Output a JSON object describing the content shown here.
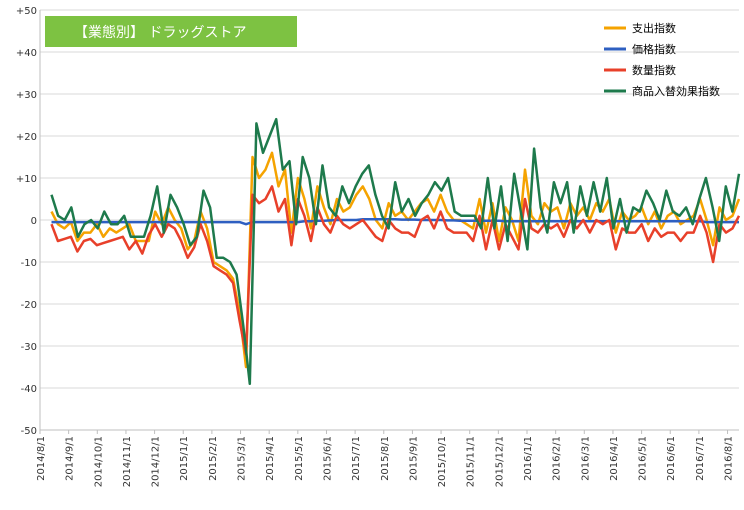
{
  "chart_data": {
    "type": "line",
    "title": "【業態別】 ドラッグストア",
    "title_box_color": "#7DC242",
    "ylim": [
      -50,
      50
    ],
    "y_ticks": [
      {
        "value": 50,
        "label": "+50"
      },
      {
        "value": 40,
        "label": "+40"
      },
      {
        "value": 30,
        "label": "+30"
      },
      {
        "value": 20,
        "label": "+20"
      },
      {
        "value": 10,
        "label": "+10"
      },
      {
        "value": 0,
        "label": "0"
      },
      {
        "value": -10,
        "label": "-10"
      },
      {
        "value": -20,
        "label": "-20"
      },
      {
        "value": -30,
        "label": "-30"
      },
      {
        "value": -40,
        "label": "-40"
      },
      {
        "value": -50,
        "label": "-50"
      }
    ],
    "x_ticks": [
      "2014/8/1",
      "2014/9/1",
      "2014/10/1",
      "2014/11/1",
      "2014/12/1",
      "2015/1/1",
      "2015/2/1",
      "2015/3/1",
      "2015/4/1",
      "2015/5/1",
      "2015/6/1",
      "2015/7/1",
      "2015/8/1",
      "2015/9/1",
      "2015/10/1",
      "2015/11/1",
      "2015/12/1",
      "2016/1/1",
      "2016/2/1",
      "2016/3/1",
      "2016/4/1",
      "2016/5/1",
      "2016/6/1",
      "2016/7/1",
      "2016/8/1"
    ],
    "x_range": [
      0,
      24.4
    ],
    "grid": {
      "horizontal": true,
      "vertical": false
    },
    "legend_position": "top-right",
    "series": [
      {
        "name": "支出指数",
        "color": "#F5A300",
        "values": [
          2,
          -1,
          -2,
          -0.5,
          -5,
          -3,
          -3,
          -1,
          -4,
          -2,
          -3,
          -2,
          -1,
          -5,
          -5,
          -5,
          2,
          -1,
          3,
          0,
          -2,
          -7,
          -5,
          2,
          -2,
          -10,
          -11,
          -12,
          -14,
          -22,
          -35,
          15,
          10,
          12,
          16,
          8,
          12,
          -3,
          10,
          5,
          -2,
          8,
          3,
          -1,
          5,
          2,
          3,
          6,
          8,
          5,
          0,
          -2,
          4,
          1,
          2,
          0,
          2,
          4,
          5,
          2,
          6,
          2,
          0,
          0,
          -1,
          -2,
          5,
          -3,
          4,
          -5,
          3,
          0,
          -5,
          12,
          1,
          -1,
          4,
          2,
          3,
          -2,
          4,
          1,
          3,
          0,
          4,
          2,
          5,
          -3,
          2,
          0,
          1,
          3,
          -1,
          2,
          -2,
          1,
          2,
          -1,
          0,
          1,
          5,
          0,
          -6,
          3,
          0,
          1,
          5
        ]
      },
      {
        "name": "価格指数",
        "color": "#2E5FC1",
        "values": [
          -0.5,
          -0.5,
          -0.5,
          -0.5,
          -0.5,
          -0.5,
          -0.5,
          -0.5,
          -0.5,
          -0.5,
          -0.5,
          -0.5,
          -0.5,
          -0.5,
          -0.5,
          -0.5,
          -0.5,
          -0.5,
          -0.5,
          -0.5,
          -0.5,
          -0.5,
          -0.5,
          -0.5,
          -0.5,
          -0.5,
          -0.5,
          -0.5,
          -0.5,
          -0.5,
          -1,
          -0.5,
          -0.5,
          -0.5,
          -0.5,
          -0.5,
          -0.5,
          -0.5,
          -0.5,
          -0.3,
          -0.3,
          -0.2,
          -0.2,
          -0.1,
          0,
          0,
          0,
          0,
          0.2,
          0.2,
          0.2,
          0.2,
          0.2,
          0.2,
          0.1,
          0.1,
          0.1,
          0,
          0,
          0,
          0,
          -0.1,
          -0.1,
          -0.2,
          -0.2,
          -0.2,
          -0.2,
          -0.2,
          -0.2,
          -0.2,
          -0.3,
          -0.3,
          -0.3,
          -0.3,
          -0.3,
          -0.3,
          -0.3,
          -0.3,
          -0.3,
          -0.3,
          -0.3,
          -0.3,
          -0.3,
          -0.3,
          -0.3,
          -0.3,
          -0.3,
          -0.3,
          -0.3,
          -0.3,
          -0.3,
          -0.3,
          -0.3,
          -0.3,
          -0.3,
          -0.3,
          -0.3,
          -0.3,
          -0.3,
          -0.3,
          -0.3,
          -0.5,
          -0.5,
          -0.5,
          -0.5,
          -0.5,
          -0.5
        ]
      },
      {
        "name": "数量指数",
        "color": "#E8402A",
        "values": [
          -1,
          -5,
          -4.5,
          -4,
          -7.5,
          -5,
          -4.5,
          -6,
          -5.5,
          -5,
          -4.5,
          -4,
          -7,
          -5,
          -8,
          -3.5,
          -1,
          -4,
          -1,
          -2,
          -5,
          -9,
          -6.5,
          -1,
          -5,
          -11,
          -12,
          -13,
          -15,
          -24,
          -32,
          6,
          4,
          5,
          8,
          2,
          5,
          -6,
          5,
          1,
          -5,
          3,
          -1,
          -3,
          1,
          -1,
          -2,
          -1,
          0,
          -2,
          -4,
          -5,
          0,
          -2,
          -3,
          -3,
          -4,
          0,
          1,
          -2,
          2,
          -2,
          -3,
          -3,
          -3,
          -5,
          1,
          -7,
          0,
          -7,
          -1,
          -4,
          -7,
          5,
          -2,
          -3,
          -1,
          -2,
          -1,
          -4,
          0,
          -2,
          0,
          -3,
          0,
          -1,
          0,
          -7,
          -2,
          -3,
          -3,
          -1,
          -5,
          -2,
          -4,
          -3,
          -3,
          -5,
          -3,
          -3,
          1,
          -3,
          -10,
          -1,
          -3,
          -2,
          1
        ]
      },
      {
        "name": "商品入替効果指数",
        "color": "#1E7A4C",
        "values": [
          6,
          1,
          0,
          3,
          -4,
          -1,
          0,
          -2,
          2,
          -1,
          -1,
          1,
          -4,
          -4,
          -4,
          1,
          8,
          -3,
          6,
          3,
          -1,
          -6,
          -4,
          7,
          3,
          -9,
          -9,
          -10,
          -13,
          -25,
          -39,
          23,
          16,
          20,
          24,
          12,
          14,
          -1,
          15,
          10,
          -1,
          13,
          3,
          1,
          8,
          4,
          8,
          11,
          13,
          6,
          1,
          -2,
          9,
          2,
          5,
          1,
          4,
          6,
          9,
          7,
          10,
          2,
          1,
          1,
          1,
          -2,
          10,
          -2,
          8,
          -5,
          11,
          2,
          -7,
          17,
          3,
          -3,
          9,
          4,
          9,
          -3,
          8,
          1,
          9,
          2,
          10,
          -2,
          5,
          -3,
          3,
          2,
          7,
          4,
          0,
          7,
          2,
          1,
          3,
          -1,
          5,
          10,
          3,
          -5,
          8,
          2,
          11
        ]
      }
    ]
  }
}
